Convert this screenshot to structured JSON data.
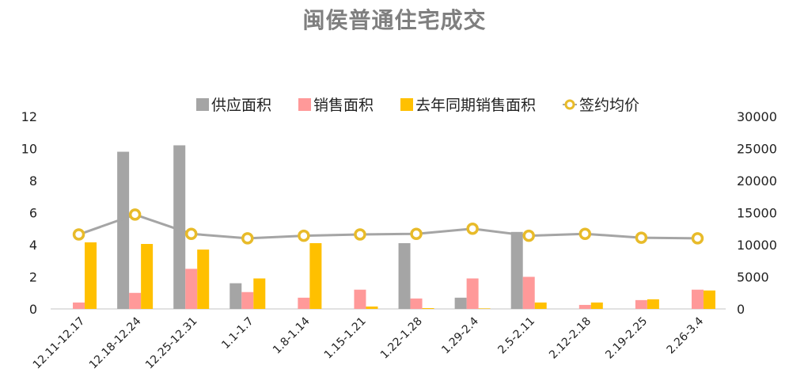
{
  "title": "闽侯普通住宅成交",
  "legend": [
    {
      "label": "供应面积",
      "color": "#a5a5a5"
    },
    {
      "label": "销售面积",
      "color": "#ff9999"
    },
    {
      "label": "去年同期销售面积",
      "color": "#ffc000"
    },
    {
      "label": "签约均价",
      "color": "#e8bb2a"
    }
  ],
  "chart_data": {
    "type": "bar",
    "title": "闽侯普通住宅成交",
    "categories": [
      "12.11-12.17",
      "12.18-12.24",
      "12.25-12.31",
      "1.1-1.7",
      "1.8-1.14",
      "1.15-1.21",
      "1.22-1.28",
      "1.29-2.4",
      "2.5-2.11",
      "2.12-2.18",
      "2.19-2.25",
      "2.26-3.4"
    ],
    "series": [
      {
        "name": "供应面积",
        "type": "bar",
        "axis": "left",
        "color": "#a5a5a5",
        "values": [
          0,
          9.8,
          10.2,
          1.6,
          0,
          0,
          4.1,
          0.7,
          4.8,
          0,
          0,
          0
        ]
      },
      {
        "name": "销售面积",
        "type": "bar",
        "axis": "left",
        "color": "#ff9999",
        "values": [
          0.4,
          1.0,
          2.5,
          1.05,
          0.7,
          1.2,
          0.65,
          1.9,
          2.0,
          0.25,
          0.55,
          1.2
        ]
      },
      {
        "name": "去年同期销售面积",
        "type": "bar",
        "axis": "left",
        "color": "#ffc000",
        "values": [
          4.15,
          4.05,
          3.7,
          1.9,
          4.1,
          0.15,
          0.05,
          0.03,
          0.4,
          0.4,
          0.6,
          1.15
        ]
      },
      {
        "name": "签约均价",
        "type": "line",
        "axis": "right",
        "color": "#a5a5a5",
        "marker_color": "#e8bb2a",
        "values": [
          11600,
          14700,
          11700,
          11000,
          11400,
          11600,
          11700,
          12500,
          11400,
          11700,
          11100,
          11000
        ]
      }
    ],
    "y_left": {
      "ticks": [
        "0",
        "2",
        "4",
        "6",
        "8",
        "10",
        "12"
      ],
      "ylim": [
        0,
        12
      ]
    },
    "y_right": {
      "ticks": [
        "0",
        "5000",
        "10000",
        "15000",
        "20000",
        "25000",
        "30000"
      ],
      "ylim": [
        0,
        30000
      ]
    },
    "xlabel": "",
    "ylabel": "",
    "grid": false,
    "legend_position": "top"
  }
}
